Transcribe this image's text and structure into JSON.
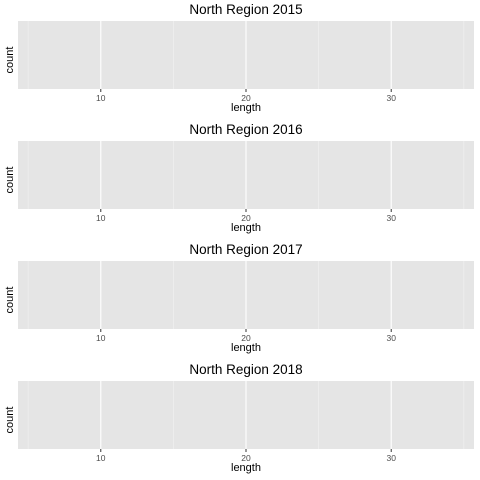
{
  "chart_data": [
    {
      "type": "bar",
      "title": "North Region 2015",
      "xlabel": "length",
      "ylabel": "count",
      "xlim": [
        4.3,
        35.7
      ],
      "x_ticks": [
        10,
        20,
        30
      ],
      "x_minor_ticks": [
        5,
        15,
        25,
        35
      ],
      "categories": [],
      "values": [],
      "grid": true
    },
    {
      "type": "bar",
      "title": "North Region 2016",
      "xlabel": "length",
      "ylabel": "count",
      "xlim": [
        4.3,
        35.7
      ],
      "x_ticks": [
        10,
        20,
        30
      ],
      "x_minor_ticks": [
        5,
        15,
        25,
        35
      ],
      "categories": [],
      "values": [],
      "grid": true
    },
    {
      "type": "bar",
      "title": "North Region 2017",
      "xlabel": "length",
      "ylabel": "count",
      "xlim": [
        4.3,
        35.7
      ],
      "x_ticks": [
        10,
        20,
        30
      ],
      "x_minor_ticks": [
        5,
        15,
        25,
        35
      ],
      "categories": [],
      "values": [],
      "grid": true
    },
    {
      "type": "bar",
      "title": "North Region 2018",
      "xlabel": "length",
      "ylabel": "count",
      "xlim": [
        4.3,
        35.7
      ],
      "x_ticks": [
        10,
        20,
        30
      ],
      "x_minor_ticks": [
        5,
        15,
        25,
        35
      ],
      "categories": [],
      "values": [],
      "grid": true
    }
  ],
  "colors": {
    "panel_background": "#e5e5e5",
    "grid_major": "#ffffff",
    "grid_minor": "#f2f2f2",
    "tick_label": "#4d4d4d"
  }
}
